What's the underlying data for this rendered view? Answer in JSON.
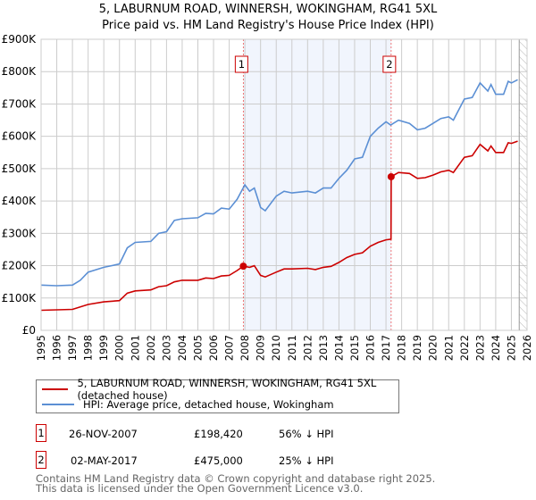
{
  "title_line1": "5, LABURNUM ROAD, WINNERSH, WOKINGHAM, RG41 5XL",
  "title_line2": "Price paid vs. HM Land Registry's House Price Index (HPI)",
  "chart_data": {
    "type": "line",
    "xlim": [
      1995,
      2026
    ],
    "ylim": [
      0,
      900000
    ],
    "y_ticks": [
      0,
      100000,
      200000,
      300000,
      400000,
      500000,
      600000,
      700000,
      800000,
      900000
    ],
    "y_tick_labels": [
      "£0",
      "£100K",
      "£200K",
      "£300K",
      "£400K",
      "£500K",
      "£600K",
      "£700K",
      "£800K",
      "£900K"
    ],
    "x_ticks": [
      1995,
      1996,
      1997,
      1998,
      1999,
      2000,
      2001,
      2002,
      2003,
      2004,
      2005,
      2006,
      2007,
      2008,
      2009,
      2010,
      2011,
      2012,
      2013,
      2014,
      2015,
      2016,
      2017,
      2018,
      2019,
      2020,
      2021,
      2022,
      2023,
      2024,
      2025,
      2026
    ],
    "x_tick_labels": [
      "1995",
      "1996",
      "1997",
      "1998",
      "1999",
      "2000",
      "2001",
      "2002",
      "2003",
      "2004",
      "2005",
      "2006",
      "2007",
      "2008",
      "2009",
      "2010",
      "2011",
      "2012",
      "2013",
      "2014",
      "2015",
      "2016",
      "2017",
      "2018",
      "2019",
      "2020",
      "2021",
      "2022",
      "2023",
      "2024",
      "2025",
      "2026"
    ],
    "grid": true,
    "shaded_range": [
      2007.9,
      2017.33
    ],
    "hatched_from": 2025.5,
    "series": [
      {
        "name": "5, LABURNUM ROAD, WINNERSH, WOKINGHAM, RG41 5XL (detached house)",
        "color": "#cc0000",
        "x": [
          1995,
          1997,
          1998,
          1999,
          2000,
          2000.5,
          2001,
          2002,
          2002.5,
          2003,
          2003.5,
          2004,
          2005,
          2005.5,
          2006,
          2006.5,
          2007,
          2007.5,
          2007.9,
          2008.3,
          2008.6,
          2009,
          2009.3,
          2010,
          2010.5,
          2011,
          2012,
          2012.5,
          2013,
          2013.5,
          2014,
          2014.5,
          2015,
          2015.5,
          2016,
          2016.5,
          2017,
          2017.32,
          2017.33,
          2017.8,
          2018.5,
          2019,
          2019.5,
          2020,
          2020.5,
          2021,
          2021.3,
          2022,
          2022.5,
          2023,
          2023.5,
          2023.7,
          2024,
          2024.5,
          2024.8,
          2025,
          2025.4
        ],
        "y": [
          62000,
          65000,
          80000,
          88000,
          92000,
          115000,
          122000,
          125000,
          135000,
          138000,
          150000,
          155000,
          155000,
          162000,
          160000,
          168000,
          170000,
          185000,
          198420,
          195000,
          200000,
          170000,
          165000,
          180000,
          190000,
          190000,
          192000,
          188000,
          195000,
          198000,
          210000,
          225000,
          235000,
          240000,
          260000,
          272000,
          280000,
          282000,
          475000,
          488000,
          485000,
          470000,
          472000,
          480000,
          490000,
          495000,
          488000,
          535000,
          540000,
          575000,
          555000,
          570000,
          550000,
          550000,
          580000,
          578000,
          585000
        ]
      },
      {
        "name": "HPI: Average price, detached house, Wokingham",
        "color": "#5b8fd4",
        "x": [
          1995,
          1996,
          1997,
          1997.5,
          1998,
          1999,
          2000,
          2000.5,
          2001,
          2002,
          2002.5,
          2003,
          2003.5,
          2004,
          2005,
          2005.5,
          2006,
          2006.5,
          2007,
          2007.5,
          2008,
          2008.3,
          2008.6,
          2009,
          2009.3,
          2010,
          2010.5,
          2011,
          2012,
          2012.5,
          2013,
          2013.5,
          2014,
          2014.5,
          2015,
          2015.5,
          2016,
          2016.5,
          2017,
          2017.3,
          2017.8,
          2018.5,
          2019,
          2019.5,
          2020,
          2020.5,
          2021,
          2021.3,
          2022,
          2022.5,
          2023,
          2023.5,
          2023.7,
          2024,
          2024.5,
          2024.8,
          2025,
          2025.4
        ],
        "y": [
          140000,
          138000,
          140000,
          155000,
          180000,
          195000,
          205000,
          255000,
          272000,
          275000,
          300000,
          305000,
          340000,
          345000,
          348000,
          362000,
          360000,
          378000,
          375000,
          405000,
          450000,
          430000,
          440000,
          380000,
          370000,
          415000,
          430000,
          425000,
          430000,
          425000,
          440000,
          440000,
          470000,
          495000,
          530000,
          535000,
          600000,
          625000,
          645000,
          635000,
          650000,
          640000,
          620000,
          625000,
          640000,
          655000,
          660000,
          650000,
          715000,
          720000,
          765000,
          740000,
          760000,
          730000,
          730000,
          770000,
          765000,
          775000
        ]
      }
    ],
    "annotations": [
      {
        "label": "1",
        "x": 2007.9,
        "y": 198420
      },
      {
        "label": "2",
        "x": 2017.33,
        "y": 475000
      }
    ]
  },
  "legend": {
    "red_label": "5, LABURNUM ROAD, WINNERSH, WOKINGHAM, RG41 5XL (detached house)",
    "blue_label": "HPI: Average price, detached house, Wokingham"
  },
  "transactions": [
    {
      "num": "1",
      "date": "26-NOV-2007",
      "price": "£198,420",
      "hpi": "56% ↓ HPI"
    },
    {
      "num": "2",
      "date": "02-MAY-2017",
      "price": "£475,000",
      "hpi": "25% ↓ HPI"
    }
  ],
  "footer_line1": "Contains HM Land Registry data © Crown copyright and database right 2025.",
  "footer_line2": "This data is licensed under the Open Government Licence v3.0."
}
